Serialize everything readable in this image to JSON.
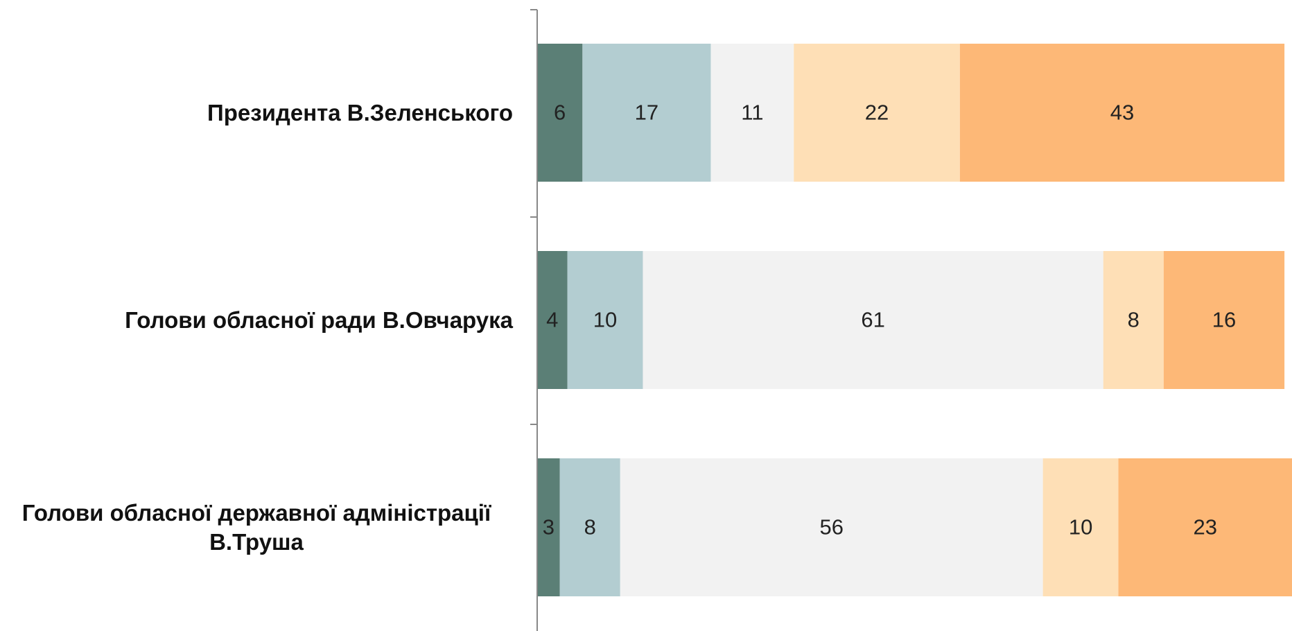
{
  "chart_data": {
    "type": "stacked-bar",
    "orientation": "horizontal",
    "categories": [
      "Президента В.Зеленського",
      "Голови обласної ради В.Овчарука",
      "Голови обласної державної адміністрації В.Труша"
    ],
    "series": [
      {
        "color": "#5b7f76",
        "values": [
          6,
          4,
          3
        ]
      },
      {
        "color": "#b3cdd1",
        "values": [
          17,
          10,
          8
        ]
      },
      {
        "color": "#f2f2f2",
        "values": [
          11,
          61,
          56
        ]
      },
      {
        "color": "#fedfb6",
        "values": [
          22,
          8,
          10
        ]
      },
      {
        "color": "#fdb877",
        "values": [
          43,
          16,
          23
        ]
      }
    ],
    "xlim": [
      0,
      100
    ]
  }
}
